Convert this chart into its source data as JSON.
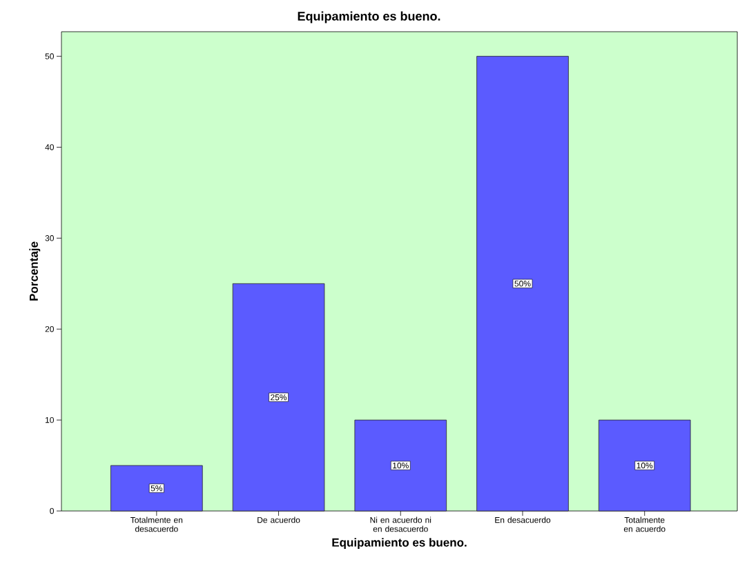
{
  "chart_data": {
    "type": "bar",
    "title": "Equipamiento es bueno.",
    "xlabel": "Equipamiento es bueno.",
    "ylabel": "Porcentaje",
    "categories": [
      "Totalmente en desacuerdo",
      "De acuerdo",
      "Ni en  acuerdo ni en desacuerdo",
      "En desacuerdo",
      "Totalmente en acuerdo"
    ],
    "values": [
      5,
      25,
      10,
      50,
      10
    ],
    "value_labels": [
      "5%",
      "25%",
      "10%",
      "50%",
      "10%"
    ],
    "color": "#5b5bff",
    "ylim": [
      0,
      52.7
    ],
    "yticks": [
      0,
      10,
      20,
      30,
      40,
      50
    ]
  }
}
